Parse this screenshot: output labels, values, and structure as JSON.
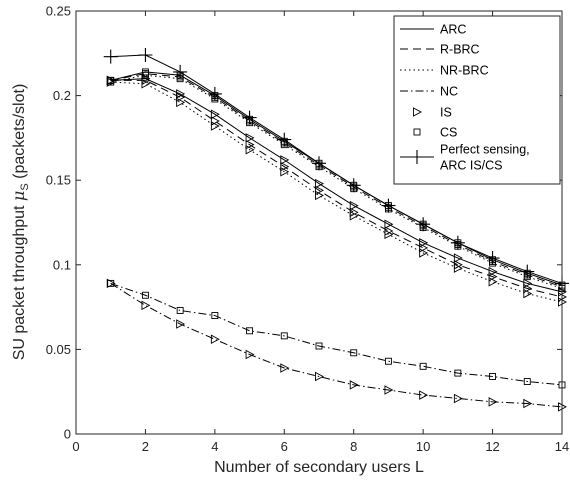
{
  "chart_data": {
    "type": "line",
    "xlabel": "Number of secondary users L",
    "ylabel_prefix": "SU packet throughput ",
    "ylabel_symbol": "μ",
    "ylabel_sub": "S",
    "ylabel_suffix": " (packets/slot)",
    "xlim": [
      0,
      14
    ],
    "ylim": [
      0,
      0.25
    ],
    "xticks": [
      0,
      2,
      4,
      6,
      8,
      10,
      12,
      14
    ],
    "xtick_labels": [
      "0",
      "2",
      "4",
      "6",
      "8",
      "10",
      "12",
      "14"
    ],
    "yticks": [
      0,
      0.05,
      0.1,
      0.15,
      0.2,
      0.25
    ],
    "ytick_labels": [
      "0",
      "0.05",
      "0.1",
      "0.15",
      "0.2",
      "0.25"
    ],
    "grid": false,
    "legend_position": "top-right",
    "legend": [
      {
        "label": "ARC",
        "line": "solid",
        "marker": "none"
      },
      {
        "label": "R-BRC",
        "line": "dashed",
        "marker": "none"
      },
      {
        "label": "NR-BRC",
        "line": "dotted",
        "marker": "none"
      },
      {
        "label": "NC",
        "line": "dashdot",
        "marker": "none"
      },
      {
        "label": "IS",
        "line": "none",
        "marker": "triangle-right"
      },
      {
        "label": "CS",
        "line": "none",
        "marker": "square"
      },
      {
        "label_lines": [
          "Perfect sensing,",
          "ARC IS/CS"
        ],
        "line": "solid",
        "marker": "plus"
      }
    ],
    "x": [
      1,
      2,
      3,
      4,
      5,
      6,
      7,
      8,
      9,
      10,
      11,
      12,
      13,
      14
    ],
    "series": [
      {
        "group": "ARC",
        "variant": "IS",
        "line": "solid",
        "marker": "triangle-right",
        "values": [
          0.209,
          0.21,
          0.201,
          0.189,
          0.175,
          0.162,
          0.148,
          0.135,
          0.124,
          0.113,
          0.104,
          0.096,
          0.089,
          0.084
        ]
      },
      {
        "group": "ARC",
        "variant": "CS",
        "line": "solid",
        "marker": "square",
        "values": [
          0.209,
          0.214,
          0.212,
          0.2,
          0.186,
          0.173,
          0.16,
          0.147,
          0.135,
          0.124,
          0.113,
          0.103,
          0.095,
          0.088
        ]
      },
      {
        "group": "R-BRC",
        "variant": "IS",
        "line": "dashed",
        "marker": "triangle-right",
        "values": [
          0.209,
          0.209,
          0.199,
          0.185,
          0.171,
          0.158,
          0.144,
          0.131,
          0.12,
          0.11,
          0.1,
          0.093,
          0.086,
          0.081
        ]
      },
      {
        "group": "R-BRC",
        "variant": "CS",
        "line": "dashed",
        "marker": "square",
        "values": [
          0.209,
          0.213,
          0.211,
          0.199,
          0.185,
          0.172,
          0.159,
          0.146,
          0.134,
          0.123,
          0.112,
          0.102,
          0.094,
          0.087
        ]
      },
      {
        "group": "NR-BRC",
        "variant": "IS",
        "line": "dotted",
        "marker": "triangle-right",
        "values": [
          0.208,
          0.207,
          0.196,
          0.182,
          0.168,
          0.155,
          0.141,
          0.129,
          0.118,
          0.107,
          0.098,
          0.09,
          0.083,
          0.078
        ]
      },
      {
        "group": "NR-BRC",
        "variant": "CS",
        "line": "dotted",
        "marker": "square",
        "values": [
          0.208,
          0.212,
          0.21,
          0.198,
          0.184,
          0.171,
          0.158,
          0.145,
          0.133,
          0.122,
          0.111,
          0.101,
          0.093,
          0.086
        ]
      },
      {
        "group": "NC",
        "variant": "IS",
        "line": "dashdot",
        "marker": "triangle-right",
        "values": [
          0.089,
          0.076,
          0.065,
          0.056,
          0.047,
          0.039,
          0.034,
          0.029,
          0.026,
          0.023,
          0.021,
          0.019,
          0.018,
          0.016
        ]
      },
      {
        "group": "NC",
        "variant": "CS",
        "line": "dashdot",
        "marker": "square",
        "values": [
          0.089,
          0.082,
          0.073,
          0.07,
          0.061,
          0.058,
          0.052,
          0.048,
          0.043,
          0.04,
          0.036,
          0.034,
          0.031,
          0.029
        ]
      },
      {
        "group": "Perfect sensing",
        "variant": "ARC IS/CS",
        "line": "solid",
        "marker": "plus",
        "values": [
          0.223,
          0.224,
          0.214,
          0.201,
          0.187,
          0.174,
          0.16,
          0.147,
          0.135,
          0.124,
          0.113,
          0.104,
          0.096,
          0.089
        ]
      }
    ]
  }
}
